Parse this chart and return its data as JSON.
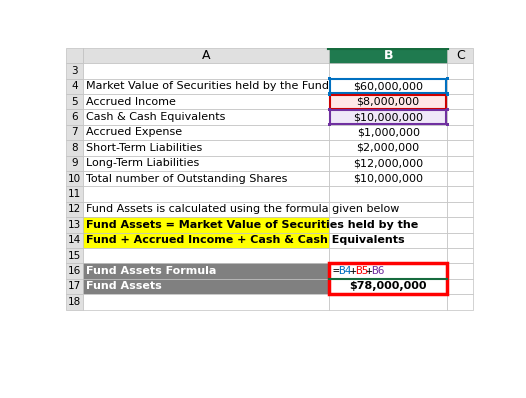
{
  "col_a_labels": {
    "3": "",
    "4": "Market Value of Securities held by the Fund",
    "5": "Accrued Income",
    "6": "Cash & Cash Equivalents",
    "7": "Accrued Expense",
    "8": "Short-Term Liabilities",
    "9": "Long-Term Liabilities",
    "10": "Total number of Outstanding Shares",
    "11": "",
    "12": "Fund Assets is calculated using the formula given below",
    "13": "Fund Assets = Market Value of Securities held by the",
    "14": "Fund + Accrued Income + Cash & Cash Equivalents",
    "15": "",
    "16": "Fund Assets Formula",
    "17": "Fund Assets",
    "18": ""
  },
  "col_b_values": {
    "3": "",
    "4": "$60,000,000",
    "5": "$8,000,000",
    "6": "$10,000,000",
    "7": "$1,000,000",
    "8": "$2,000,000",
    "9": "$12,000,000",
    "10": "$10,000,000",
    "11": "",
    "12": "",
    "13": "",
    "14": "",
    "15": "",
    "16": "=B4+B5+B6",
    "17": "$78,000,000",
    "18": ""
  },
  "header_col_a": "A",
  "header_col_b": "B",
  "header_col_c": "C",
  "bg_color": "#ffffff",
  "grid_color": "#c0c0c0",
  "row_num_bg": "#e0e0e0",
  "col_header_bg": "#e0e0e0",
  "col_b_header_bg": "#1f7a4f",
  "dark_row_bg": "#808080",
  "dark_row_fg": "#ffffff",
  "yellow_bg": "#ffff00",
  "yellow_fg": "#000000",
  "formula_fg_b4": "#0070c0",
  "formula_fg_b5": "#ff0000",
  "formula_fg_b6": "#7030a0",
  "cell_b4_border": "#0070c0",
  "cell_b5_border": "#cc0000",
  "cell_b6_border": "#7030a0",
  "result_border": "#ff0000",
  "cell_b5_bg": "#ffe8e8",
  "cell_b6_bg": "#f0e8f8"
}
